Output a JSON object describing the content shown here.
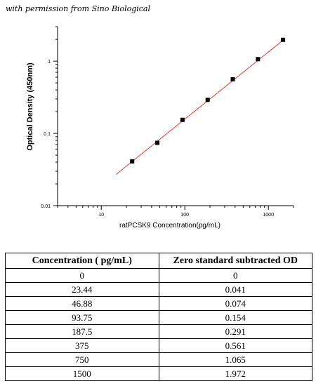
{
  "caption": "with permission from Sino Biological",
  "chart_data": {
    "type": "scatter",
    "xlabel": "ratPCSK9  Concentration(pg/mL)",
    "ylabel": "Optical Density (450nm)",
    "xscale": "log",
    "yscale": "log",
    "xlim": [
      3,
      2000
    ],
    "ylim": [
      0.01,
      3
    ],
    "x_ticks": [
      10,
      100,
      1000
    ],
    "x_tick_labels": [
      "10",
      "100",
      "1000"
    ],
    "y_ticks": [
      0.01,
      0.1,
      1
    ],
    "y_tick_labels": [
      "0.01",
      "0.1",
      "1"
    ],
    "grid": false,
    "series": [
      {
        "x": [
          23.44,
          46.88,
          93.75,
          187.5,
          375,
          750,
          1500
        ],
        "y": [
          0.041,
          0.074,
          0.154,
          0.291,
          0.561,
          1.065,
          1.972
        ],
        "marker": "square",
        "color": "#000000"
      }
    ],
    "fit_line": {
      "x": [
        15,
        1500
      ],
      "y": [
        0.027,
        1.95
      ],
      "color": "#e8332a"
    }
  },
  "table": {
    "headers": [
      "Concentration ( pg/mL)",
      "Zero standard subtracted OD"
    ],
    "rows": [
      [
        "0",
        "0"
      ],
      [
        "23.44",
        "0.041"
      ],
      [
        "46.88",
        "0.074"
      ],
      [
        "93.75",
        "0.154"
      ],
      [
        "187.5",
        "0.291"
      ],
      [
        "375",
        "0.561"
      ],
      [
        "750",
        "1.065"
      ],
      [
        "1500",
        "1.972"
      ]
    ]
  }
}
